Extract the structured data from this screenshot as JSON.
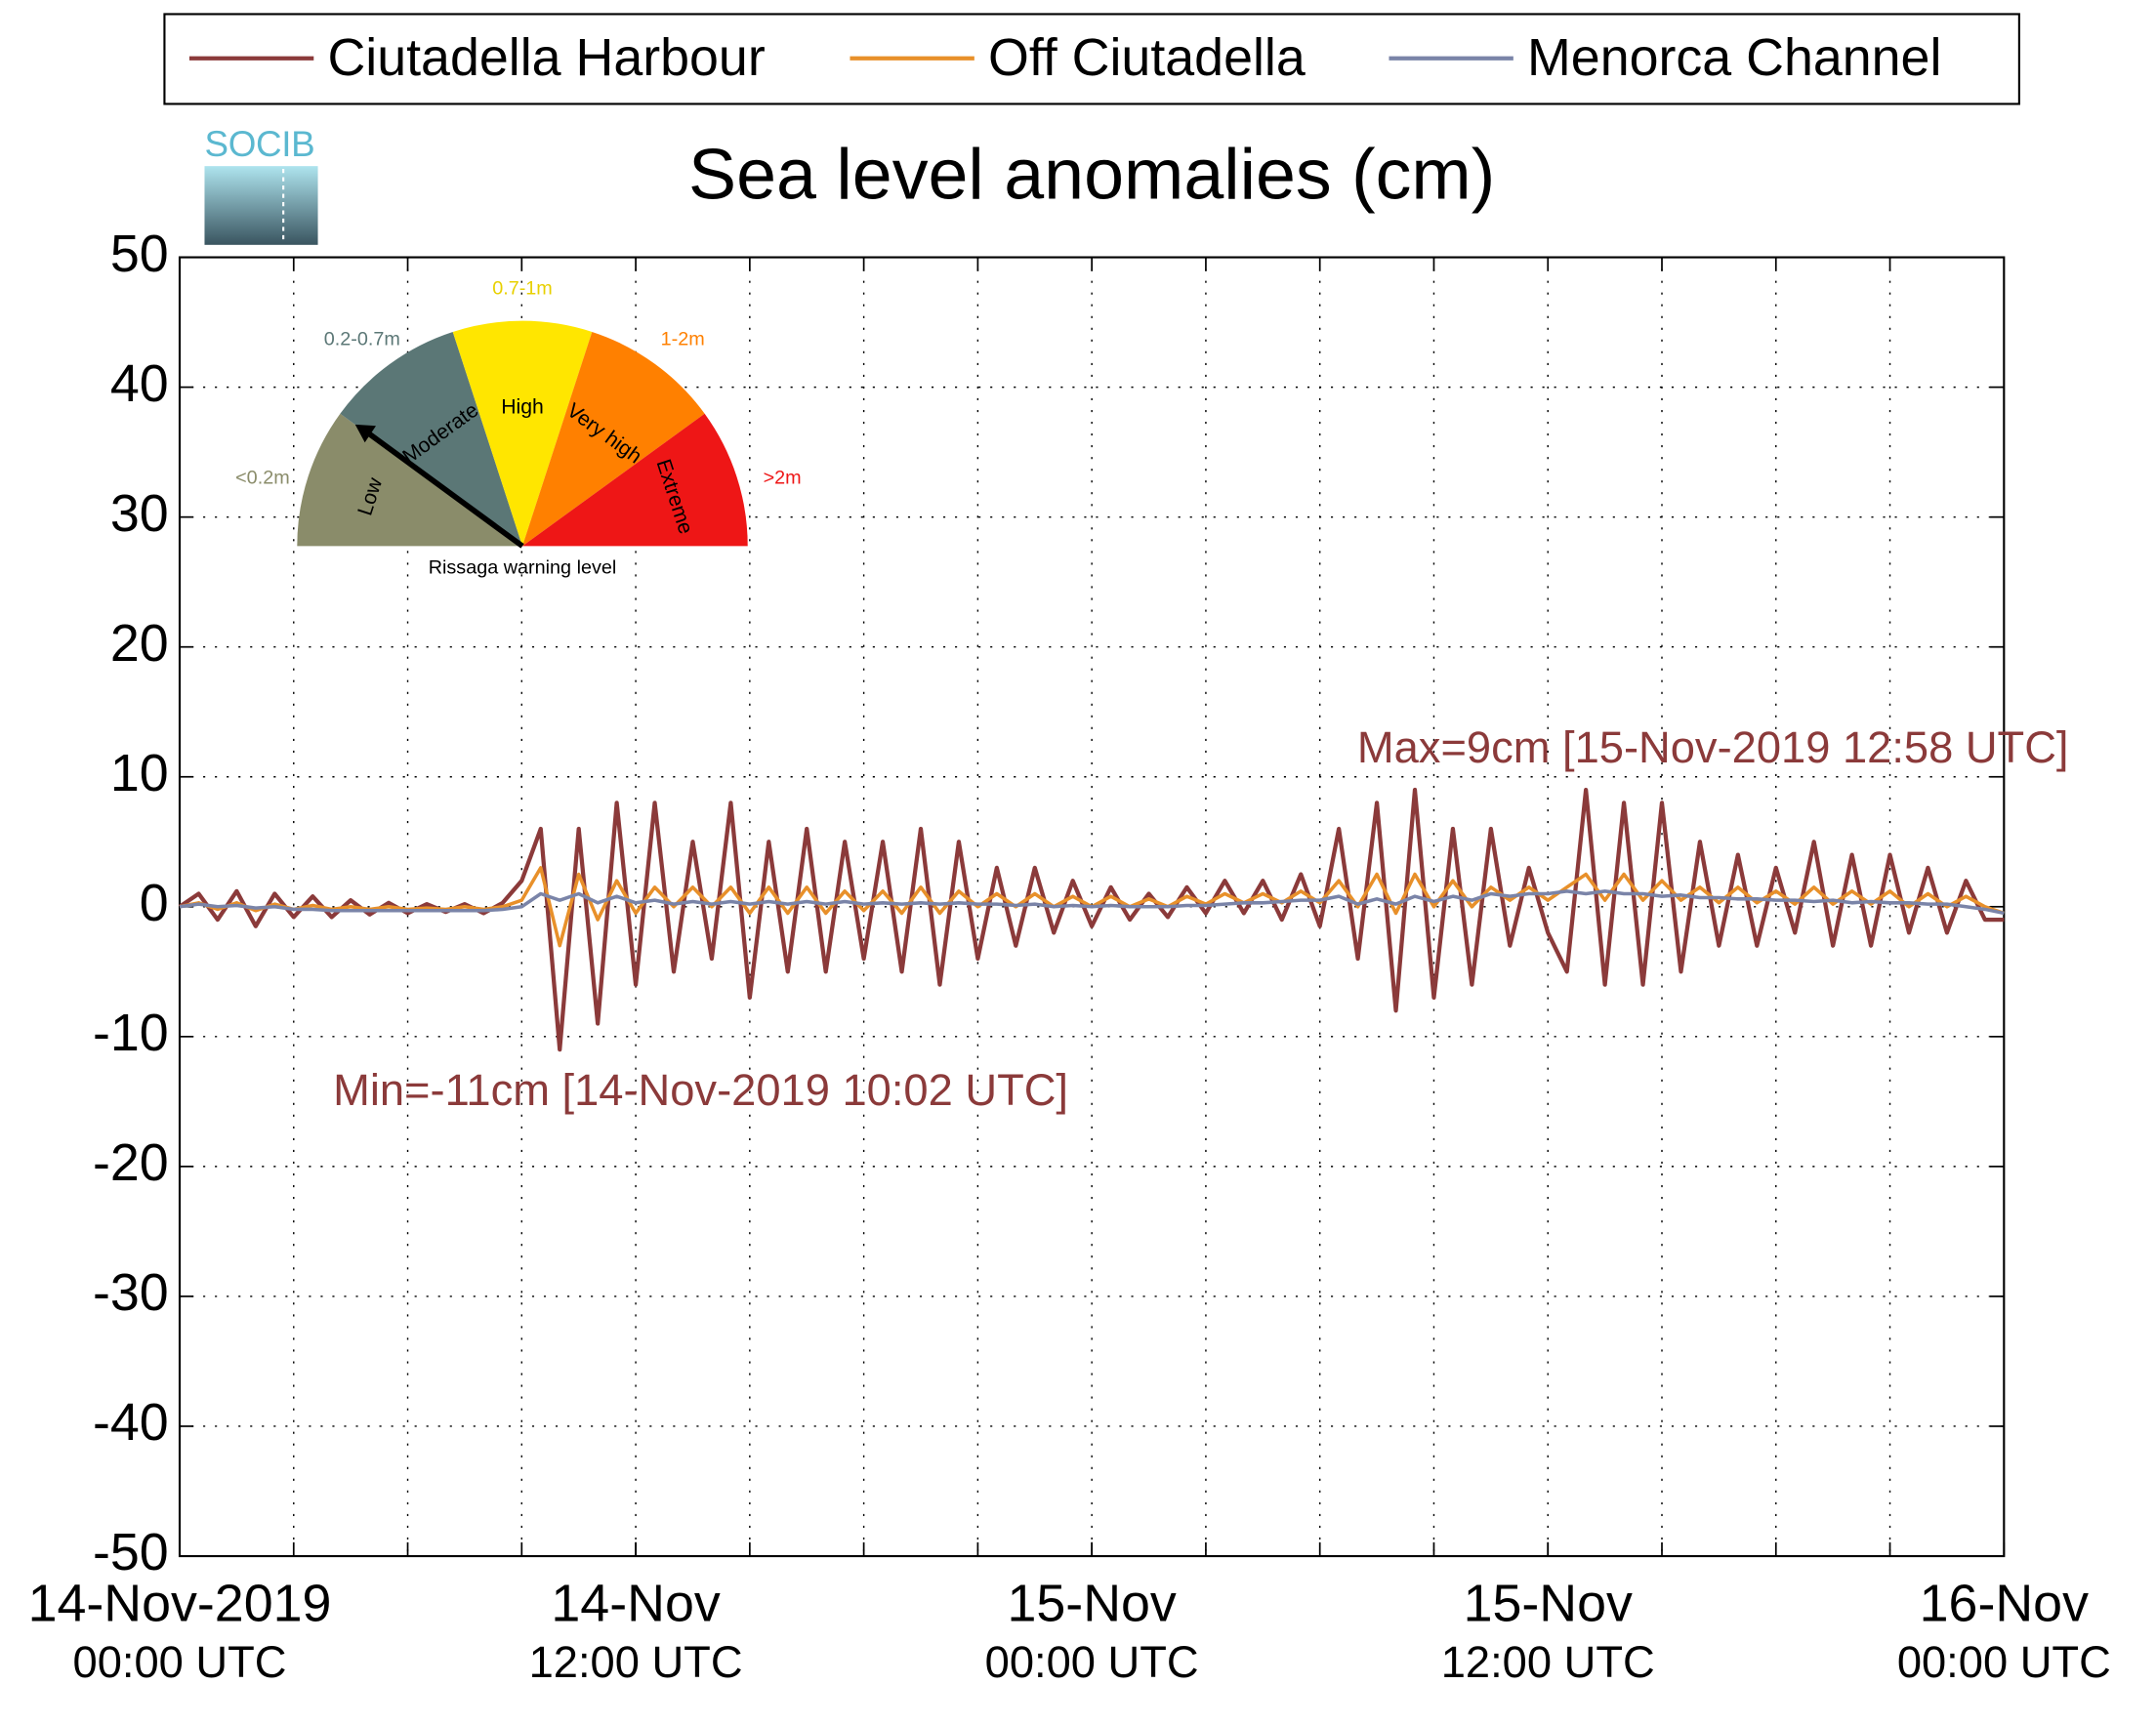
{
  "chart_data": {
    "type": "line",
    "title": "Sea level anomalies (cm)",
    "logo": "SOCIB",
    "legend": "top",
    "grid": true,
    "xlim": [
      0,
      48
    ],
    "ylim": [
      -50,
      50
    ],
    "yticks": [
      -50,
      -40,
      -30,
      -20,
      -10,
      0,
      10,
      20,
      30,
      40,
      50
    ],
    "xticks": [
      {
        "value": 0,
        "label": "14-Nov-2019\n00:00 UTC"
      },
      {
        "value": 12,
        "label": "14-Nov\n12:00 UTC"
      },
      {
        "value": 24,
        "label": "15-Nov\n00:00 UTC"
      },
      {
        "value": 36,
        "label": "15-Nov\n12:00 UTC"
      },
      {
        "value": 48,
        "label": "16-Nov\n00:00 UTC"
      }
    ],
    "xgrid": [
      3,
      6,
      9,
      12,
      15,
      18,
      21,
      24,
      27,
      30,
      33,
      36,
      39,
      42,
      45
    ],
    "x": [
      0,
      0.5,
      1,
      1.5,
      2,
      2.5,
      3,
      3.5,
      4,
      4.5,
      5,
      5.5,
      6,
      6.5,
      7,
      7.5,
      8,
      8.5,
      9,
      9.5,
      10,
      10.5,
      11,
      11.5,
      12,
      12.5,
      13,
      13.5,
      14,
      14.5,
      15,
      15.5,
      16,
      16.5,
      17,
      17.5,
      18,
      18.5,
      19,
      19.5,
      20,
      20.5,
      21,
      21.5,
      22,
      22.5,
      23,
      23.5,
      24,
      24.5,
      25,
      25.5,
      26,
      26.5,
      27,
      27.5,
      28,
      28.5,
      29,
      29.5,
      30,
      30.5,
      31,
      31.5,
      32,
      32.5,
      33,
      33.5,
      34,
      34.5,
      35,
      35.5,
      36,
      36.5,
      37,
      37.5,
      38,
      38.5,
      39,
      39.5,
      40,
      40.5,
      41,
      41.5,
      42,
      42.5,
      43,
      43.5,
      44,
      44.5,
      45,
      45.5,
      46,
      46.5,
      47,
      47.5,
      48
    ],
    "series": [
      {
        "name": "Ciutadella Harbour",
        "color": "#8b3a3a",
        "values": [
          0,
          1,
          -1,
          1.2,
          -1.5,
          1,
          -0.8,
          0.8,
          -0.8,
          0.5,
          -0.6,
          0.3,
          -0.5,
          0.2,
          -0.4,
          0.2,
          -0.5,
          0.3,
          2,
          6,
          -11,
          6,
          -9,
          8,
          -6,
          8,
          -5,
          5,
          -4,
          8,
          -7,
          5,
          -5,
          6,
          -5,
          5,
          -4,
          5,
          -5,
          6,
          -6,
          5,
          -4,
          3,
          -3,
          3,
          -2,
          2,
          -1.5,
          1.5,
          -1,
          1,
          -0.8,
          1.5,
          -0.5,
          2,
          -0.5,
          2,
          -1,
          2.5,
          -1.5,
          6,
          -4,
          8,
          -8,
          9,
          -7,
          6,
          -6,
          6,
          -3,
          3,
          -2,
          -5,
          9,
          -6,
          8,
          -6,
          8,
          -5,
          5,
          -3,
          4,
          -3,
          3,
          -2,
          5,
          -3,
          4,
          -3,
          4,
          -2,
          3,
          -2,
          2,
          -1,
          -1
        ]
      },
      {
        "name": "Off Ciutadella",
        "color": "#e8902a",
        "values": [
          0,
          0.3,
          -0.2,
          0.3,
          -0.3,
          0.2,
          -0.2,
          0.1,
          -0.2,
          0,
          -0.2,
          0,
          -0.2,
          -0.1,
          -0.2,
          0,
          -0.2,
          0,
          0.5,
          3,
          -3,
          2.5,
          -1,
          2,
          -0.5,
          1.5,
          0,
          1.5,
          0,
          1.5,
          -0.5,
          1.5,
          -0.5,
          1.5,
          -0.5,
          1.2,
          -0.3,
          1.2,
          -0.5,
          1.5,
          -0.5,
          1.2,
          0,
          1,
          0,
          1,
          0,
          0.8,
          0,
          0.8,
          0,
          0.6,
          0,
          0.8,
          0.2,
          1,
          0.3,
          1,
          0.3,
          1.2,
          0.3,
          2,
          0,
          2.5,
          -0.5,
          2.5,
          0,
          2,
          0,
          1.5,
          0.5,
          1.5,
          0.5,
          1.5,
          2.5,
          0.5,
          2.5,
          0.5,
          2,
          0.5,
          1.5,
          0.3,
          1.5,
          0.3,
          1.2,
          0.2,
          1.5,
          0.2,
          1.2,
          0.2,
          1.2,
          0,
          1,
          0,
          0.8,
          0,
          -0.5
        ]
      },
      {
        "name": "Menorca Channel",
        "color": "#7a84a8",
        "values": [
          0,
          0.2,
          0,
          0.1,
          -0.1,
          0,
          -0.2,
          -0.2,
          -0.3,
          -0.3,
          -0.3,
          -0.3,
          -0.3,
          -0.3,
          -0.3,
          -0.3,
          -0.3,
          -0.2,
          0,
          1,
          0.5,
          1,
          0.3,
          0.8,
          0.3,
          0.5,
          0.2,
          0.4,
          0.2,
          0.4,
          0.2,
          0.4,
          0.2,
          0.4,
          0.2,
          0.4,
          0.2,
          0.3,
          0.2,
          0.3,
          0.2,
          0.3,
          0.2,
          0.2,
          0.1,
          0.2,
          0,
          0.1,
          0,
          0.1,
          0,
          0,
          0,
          0.1,
          0.1,
          0.2,
          0.3,
          0.3,
          0.4,
          0.5,
          0.5,
          0.8,
          0.2,
          0.6,
          0.2,
          0.8,
          0.4,
          0.8,
          0.5,
          1,
          0.8,
          1,
          1,
          1.2,
          1,
          1.2,
          1,
          1,
          0.8,
          0.9,
          0.7,
          0.7,
          0.6,
          0.6,
          0.5,
          0.5,
          0.4,
          0.5,
          0.3,
          0.4,
          0.3,
          0.3,
          0.2,
          0.2,
          0,
          -0.2,
          -0.5
        ]
      }
    ],
    "annotations": [
      {
        "text": "Max=9cm [15-Nov-2019 12:58 UTC]",
        "x": 36.97,
        "y": 9
      },
      {
        "text": "Min=-11cm [14-Nov-2019 10:02 UTC]",
        "x": 10.03,
        "y": -11
      }
    ],
    "inset": {
      "title": "Rissaga warning level",
      "levels": [
        {
          "name": "Low",
          "range": "<0.2m",
          "color": "#8a8c6a"
        },
        {
          "name": "Moderate",
          "range": "0.2-0.7m",
          "color": "#5b7776"
        },
        {
          "name": "High",
          "range": "0.7-1m",
          "color": "#ffe600"
        },
        {
          "name": "Very high",
          "range": "1-2m",
          "color": "#ff8000"
        },
        {
          "name": "Extreme",
          "range": ">2m",
          "color": "#ee1616"
        }
      ]
    }
  }
}
